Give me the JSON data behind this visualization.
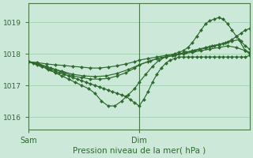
{
  "background_color": "#cce8d8",
  "grid_color": "#99ccaa",
  "line_color": "#2d6b2d",
  "marker_color": "#2d6b2d",
  "xlabel": "Pression niveau de la mer( hPa )",
  "xlabel_color": "#2d6b2d",
  "tick_color": "#2d6b2d",
  "ylim": [
    1015.6,
    1019.6
  ],
  "yticks": [
    1016,
    1017,
    1018,
    1019
  ],
  "xtick_labels": [
    "Sam",
    "Dim"
  ],
  "xtick_positions": [
    0.0,
    0.5
  ],
  "xlim": [
    0.0,
    1.0
  ],
  "vline_x": 0.5,
  "series": [
    {
      "x": [
        0.0,
        0.02,
        0.04,
        0.06,
        0.08,
        0.1,
        0.12,
        0.14,
        0.16,
        0.18,
        0.2,
        0.22,
        0.24,
        0.26,
        0.28,
        0.3,
        0.32,
        0.34,
        0.36,
        0.38,
        0.4,
        0.42,
        0.44,
        0.46,
        0.48,
        0.5,
        0.52,
        0.54,
        0.56,
        0.58,
        0.6,
        0.62,
        0.64,
        0.66,
        0.68,
        0.7,
        0.72,
        0.74,
        0.76,
        0.78,
        0.8,
        0.82,
        0.84,
        0.86,
        0.88,
        0.9,
        0.92,
        0.94,
        0.96,
        0.98,
        1.0
      ],
      "y": [
        1017.75,
        1017.7,
        1017.65,
        1017.6,
        1017.55,
        1017.5,
        1017.45,
        1017.4,
        1017.35,
        1017.3,
        1017.25,
        1017.2,
        1017.15,
        1017.1,
        1017.05,
        1017.0,
        1016.95,
        1016.9,
        1016.85,
        1016.8,
        1016.75,
        1016.7,
        1016.65,
        1016.55,
        1016.45,
        1016.35,
        1016.55,
        1016.8,
        1017.1,
        1017.35,
        1017.55,
        1017.7,
        1017.8,
        1017.85,
        1017.9,
        1017.9,
        1017.9,
        1017.9,
        1017.9,
        1017.9,
        1017.9,
        1017.9,
        1017.9,
        1017.9,
        1017.9,
        1017.9,
        1017.9,
        1017.9,
        1017.9,
        1017.9,
        1017.95
      ]
    },
    {
      "x": [
        0.0,
        0.03,
        0.06,
        0.09,
        0.12,
        0.15,
        0.18,
        0.21,
        0.24,
        0.27,
        0.3,
        0.33,
        0.36,
        0.39,
        0.42,
        0.45,
        0.48,
        0.5,
        0.53,
        0.56,
        0.59,
        0.62,
        0.65,
        0.68,
        0.71,
        0.74,
        0.77,
        0.8,
        0.83,
        0.86,
        0.89,
        0.92,
        0.95,
        0.98,
        1.0
      ],
      "y": [
        1017.75,
        1017.7,
        1017.6,
        1017.5,
        1017.4,
        1017.3,
        1017.2,
        1017.1,
        1017.0,
        1016.9,
        1016.75,
        1016.5,
        1016.35,
        1016.35,
        1016.5,
        1016.7,
        1016.9,
        1017.1,
        1017.35,
        1017.6,
        1017.8,
        1017.9,
        1017.95,
        1018.0,
        1018.05,
        1018.1,
        1018.15,
        1018.2,
        1018.25,
        1018.3,
        1018.35,
        1018.4,
        1018.45,
        1018.1,
        1018.0
      ]
    },
    {
      "x": [
        0.0,
        0.04,
        0.08,
        0.12,
        0.16,
        0.2,
        0.24,
        0.28,
        0.32,
        0.36,
        0.4,
        0.44,
        0.48,
        0.5,
        0.54,
        0.58,
        0.62,
        0.66,
        0.7,
        0.74,
        0.78,
        0.82,
        0.86,
        0.9,
        0.94,
        0.98,
        1.0
      ],
      "y": [
        1017.75,
        1017.7,
        1017.6,
        1017.5,
        1017.4,
        1017.3,
        1017.25,
        1017.2,
        1017.2,
        1017.22,
        1017.3,
        1017.4,
        1017.55,
        1017.65,
        1017.75,
        1017.85,
        1017.9,
        1017.95,
        1018.0,
        1018.05,
        1018.1,
        1018.15,
        1018.2,
        1018.25,
        1018.2,
        1018.1,
        1018.05
      ]
    },
    {
      "x": [
        0.0,
        0.05,
        0.1,
        0.15,
        0.2,
        0.25,
        0.3,
        0.35,
        0.4,
        0.45,
        0.5,
        0.55,
        0.6,
        0.65,
        0.7,
        0.75,
        0.8,
        0.82,
        0.84,
        0.86,
        0.88,
        0.9,
        0.92,
        0.94,
        0.96,
        0.98,
        1.0
      ],
      "y": [
        1017.75,
        1017.65,
        1017.55,
        1017.45,
        1017.35,
        1017.3,
        1017.28,
        1017.3,
        1017.38,
        1017.5,
        1017.65,
        1017.78,
        1017.88,
        1017.95,
        1018.02,
        1018.1,
        1018.18,
        1018.22,
        1018.25,
        1018.28,
        1018.32,
        1018.38,
        1018.45,
        1018.55,
        1018.65,
        1018.75,
        1018.8
      ]
    },
    {
      "x": [
        0.0,
        0.04,
        0.08,
        0.12,
        0.16,
        0.2,
        0.24,
        0.28,
        0.32,
        0.36,
        0.4,
        0.44,
        0.48,
        0.5,
        0.54,
        0.58,
        0.62,
        0.66,
        0.68,
        0.7,
        0.72,
        0.74,
        0.76,
        0.78,
        0.8,
        0.82,
        0.84,
        0.86,
        0.88,
        0.9,
        0.92,
        0.94,
        0.96,
        0.98,
        1.0
      ],
      "y": [
        1017.75,
        1017.72,
        1017.68,
        1017.65,
        1017.63,
        1017.6,
        1017.58,
        1017.55,
        1017.55,
        1017.58,
        1017.62,
        1017.68,
        1017.75,
        1017.8,
        1017.85,
        1017.9,
        1017.95,
        1018.0,
        1018.05,
        1018.1,
        1018.2,
        1018.35,
        1018.55,
        1018.75,
        1018.95,
        1019.05,
        1019.1,
        1019.15,
        1019.1,
        1018.95,
        1018.75,
        1018.55,
        1018.4,
        1018.25,
        1018.15
      ]
    }
  ]
}
